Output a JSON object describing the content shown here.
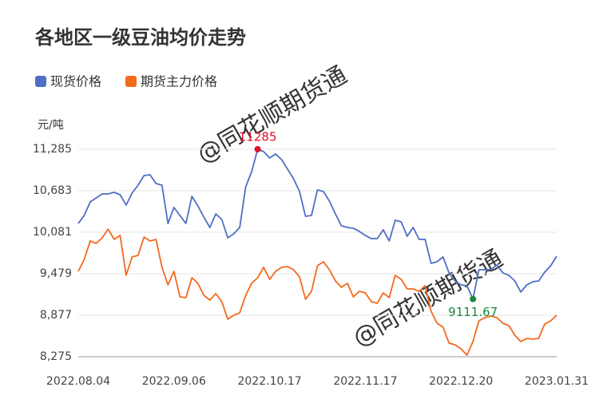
{
  "chart_data": {
    "type": "line",
    "title": "各地区一级豆油均价走势",
    "y_unit": "元/吨",
    "watermark": "@同花顺期货通",
    "categories": [
      "2022.08.04",
      null,
      null,
      null,
      null,
      null,
      null,
      null,
      null,
      null,
      null,
      null,
      null,
      null,
      null,
      null,
      "2022.09.06",
      null,
      null,
      null,
      null,
      null,
      null,
      null,
      null,
      null,
      null,
      null,
      null,
      null,
      null,
      null,
      "2022.10.17",
      null,
      null,
      null,
      null,
      null,
      null,
      null,
      null,
      null,
      null,
      null,
      null,
      null,
      null,
      null,
      "2022.11.17",
      null,
      null,
      null,
      null,
      null,
      null,
      null,
      null,
      null,
      null,
      null,
      null,
      null,
      null,
      null,
      "2022.12.20",
      null,
      null,
      null,
      null,
      null,
      null,
      null,
      null,
      null,
      null,
      null,
      null,
      null,
      null,
      null,
      "2023.01.31"
    ],
    "series": [
      {
        "name": "现货价格",
        "color": "#4e6fc4",
        "values": [
          10208,
          10324,
          10521,
          10579,
          10637,
          10637,
          10660,
          10625,
          10475,
          10648,
          10764,
          10903,
          10915,
          10787,
          10764,
          10208,
          10440,
          10324,
          10208,
          10602,
          10463,
          10301,
          10150,
          10347,
          10266,
          10000,
          10058,
          10150,
          10741,
          10961,
          11285,
          11250,
          11158,
          11216,
          11135,
          10996,
          10857,
          10671,
          10313,
          10324,
          10695,
          10671,
          10533,
          10347,
          10174,
          10150,
          10139,
          10093,
          10035,
          9988,
          9988,
          10116,
          9954,
          10255,
          10232,
          10023,
          10150,
          9977,
          9977,
          9630,
          9653,
          9722,
          9491,
          9375,
          9317,
          9305,
          9111.67,
          9537,
          9537,
          9537,
          9606,
          9491,
          9456,
          9375,
          9213,
          9317,
          9363,
          9375,
          9502,
          9595,
          9734
        ]
      },
      {
        "name": "期货主力价格",
        "color": "#f26a1b",
        "values": [
          9514,
          9687,
          9954,
          9919,
          10000,
          10127,
          9977,
          10035,
          9456,
          9722,
          9745,
          10012,
          9954,
          9977,
          9572,
          9317,
          9514,
          9143,
          9132,
          9421,
          9340,
          9166,
          9097,
          9190,
          9074,
          8819,
          8877,
          8912,
          9166,
          9340,
          9421,
          9572,
          9398,
          9514,
          9572,
          9583,
          9537,
          9433,
          9109,
          9224,
          9595,
          9653,
          9537,
          9375,
          9282,
          9340,
          9143,
          9224,
          9201,
          9074,
          9051,
          9201,
          9132,
          9456,
          9398,
          9259,
          9259,
          9224,
          9305,
          8935,
          8761,
          8703,
          8472,
          8449,
          8391,
          8298,
          8495,
          8796,
          8842,
          8865,
          8842,
          8761,
          8726,
          8588,
          8495,
          8541,
          8530,
          8541,
          8750,
          8796,
          8877
        ]
      }
    ],
    "max_label": "11285",
    "max_color": "#e0102a",
    "min_label": "9111.67",
    "min_color": "#1a8a3c",
    "ylim": [
      8275,
      11285
    ],
    "yticks": [
      {
        "value": 8275,
        "label": "8,275"
      },
      {
        "value": 8877,
        "label": "8,877"
      },
      {
        "value": 9479,
        "label": "9,479"
      },
      {
        "value": 10081,
        "label": "10,081"
      },
      {
        "value": 10683,
        "label": "10,683"
      },
      {
        "value": 11285,
        "label": "11,285"
      }
    ],
    "grid": true
  }
}
